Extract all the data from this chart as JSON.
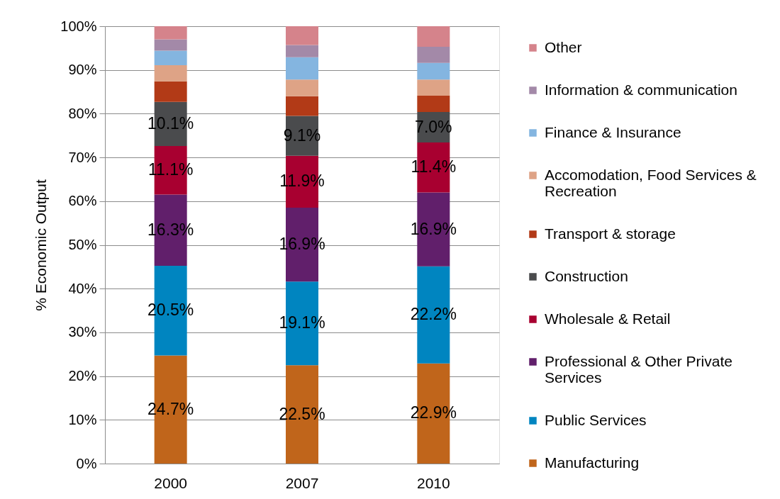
{
  "chart_data": {
    "type": "bar",
    "stacked": true,
    "ylabel": "% Economic Output",
    "categories": [
      "2000",
      "2007",
      "2010"
    ],
    "ylim": [
      0,
      100
    ],
    "yticks": [
      {
        "value": 0,
        "label": "0%"
      },
      {
        "value": 10,
        "label": "10%"
      },
      {
        "value": 20,
        "label": "20%"
      },
      {
        "value": 30,
        "label": "30%"
      },
      {
        "value": 40,
        "label": "40%"
      },
      {
        "value": 50,
        "label": "50%"
      },
      {
        "value": 60,
        "label": "60%"
      },
      {
        "value": 70,
        "label": "70%"
      },
      {
        "value": 80,
        "label": "80%"
      },
      {
        "value": 90,
        "label": "90%"
      },
      {
        "value": 100,
        "label": "100%"
      }
    ],
    "grid": "y",
    "legend": "right",
    "series": [
      {
        "name": "Manufacturing",
        "color": "#c0651b",
        "values": [
          24.7,
          22.5,
          22.9
        ],
        "value_labels": [
          "24.7%",
          "22.5%",
          "22.9%"
        ]
      },
      {
        "name": "Public Services",
        "color": "#0085c0",
        "values": [
          20.5,
          19.1,
          22.2
        ],
        "value_labels": [
          "20.5%",
          "19.1%",
          "22.2%"
        ]
      },
      {
        "name": "Professional & Other Private Services",
        "color": "#611f6b",
        "values": [
          16.3,
          16.9,
          16.9
        ],
        "value_labels": [
          "16.3%",
          "16.9%",
          "16.9%"
        ]
      },
      {
        "name": "Wholesale & Retail",
        "color": "#a80030",
        "values": [
          11.1,
          11.9,
          11.4
        ],
        "value_labels": [
          "11.1%",
          "11.9%",
          "11.4%"
        ]
      },
      {
        "name": "Construction",
        "color": "#4a4b4d",
        "values": [
          10.1,
          9.1,
          7.0
        ],
        "value_labels": [
          "10.1%",
          "9.1%",
          "7.0%"
        ]
      },
      {
        "name": "Transport & storage",
        "color": "#b23a17",
        "values": [
          4.7,
          4.5,
          3.7
        ]
      },
      {
        "name": "Accomodation, Food Services & Recreation",
        "color": "#dea386",
        "values": [
          3.7,
          3.8,
          3.7
        ]
      },
      {
        "name": "Finance & Insurance",
        "color": "#84b5e0",
        "values": [
          3.3,
          5.1,
          3.8
        ]
      },
      {
        "name": "Information & communication",
        "color": "#a389a8",
        "values": [
          2.6,
          2.8,
          3.7
        ]
      },
      {
        "name": "Other",
        "color": "#d5838b",
        "values": [
          3.0,
          4.3,
          4.7
        ]
      }
    ]
  }
}
